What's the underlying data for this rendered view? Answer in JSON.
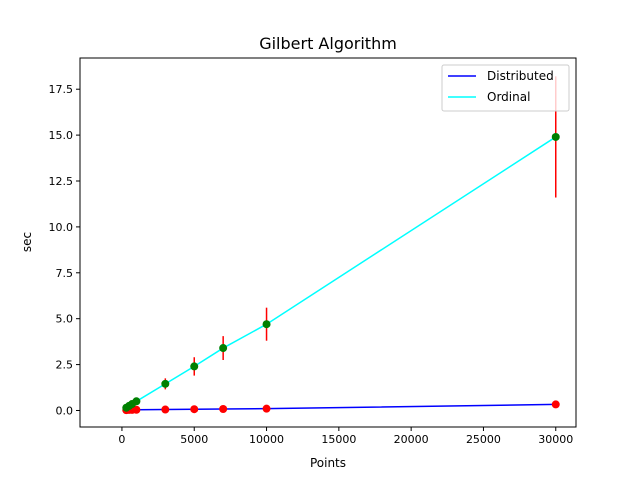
{
  "chart_data": {
    "type": "line",
    "title": "Gilbert Algorithm",
    "xlabel": "Points",
    "ylabel": "sec",
    "xlim": [
      -2900,
      31400
    ],
    "ylim": [
      -0.9,
      19.2
    ],
    "xticks": [
      0,
      5000,
      10000,
      15000,
      20000,
      25000,
      30000
    ],
    "xtick_labels": [
      "0",
      "5000",
      "10000",
      "15000",
      "20000",
      "25000",
      "30000"
    ],
    "yticks": [
      0.0,
      2.5,
      5.0,
      7.5,
      10.0,
      12.5,
      15.0,
      17.5
    ],
    "ytick_labels": [
      "0.0",
      "2.5",
      "5.0",
      "7.5",
      "10.0",
      "12.5",
      "15.0",
      "17.5"
    ],
    "grid": false,
    "legend_position": "top-right",
    "x": [
      300,
      500,
      700,
      1000,
      3000,
      5000,
      7000,
      10000,
      30000
    ],
    "series": [
      {
        "name": "Distributed",
        "color": "#0000ff",
        "marker_color": "#ff0000",
        "values": [
          0.02,
          0.03,
          0.03,
          0.04,
          0.05,
          0.07,
          0.08,
          0.1,
          0.33
        ],
        "errors": [
          0.02,
          0.02,
          0.02,
          0.02,
          0.03,
          0.03,
          0.03,
          0.04,
          0.06
        ]
      },
      {
        "name": "Ordinal",
        "color": "#00ffff",
        "marker_color": "#008000",
        "values": [
          0.15,
          0.25,
          0.35,
          0.5,
          1.45,
          2.4,
          3.4,
          4.7,
          14.9
        ],
        "errors": [
          0.05,
          0.08,
          0.1,
          0.12,
          0.3,
          0.5,
          0.65,
          0.9,
          3.3
        ]
      }
    ],
    "error_bar_color": "#ff0000"
  }
}
